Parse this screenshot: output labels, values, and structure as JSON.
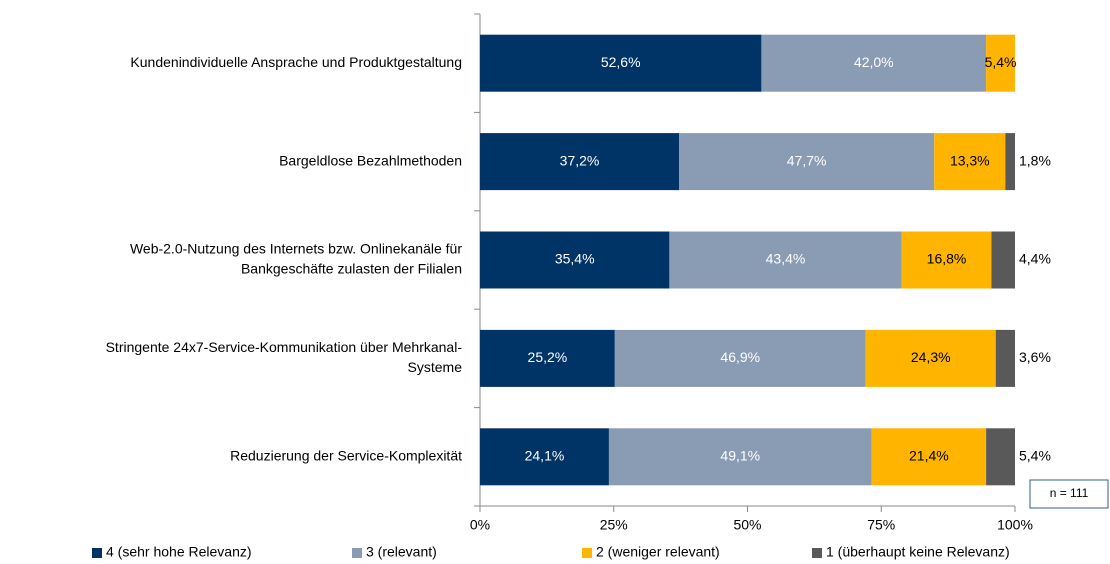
{
  "chart_data": {
    "type": "stacked-barh",
    "categories": [
      [
        "Kundenindividuelle Ansprache und Produktgestaltung"
      ],
      [
        "Bargeldlose Bezahlmethoden"
      ],
      [
        "Web-2.0-Nutzung des Internets bzw. Onlinekanäle für",
        "Bankgeschäfte zulasten der Filialen"
      ],
      [
        "Stringente 24x7-Service-Kommunikation über Mehrkanal-",
        "Systeme"
      ],
      [
        "Reduzierung der Service-Komplexität"
      ]
    ],
    "series": [
      {
        "name": "4 (sehr hohe Relevanz)",
        "color": "#003366",
        "label_color": "#ffffff",
        "values": [
          52.6,
          37.2,
          35.4,
          25.2,
          24.1
        ],
        "value_labels": [
          "52,6%",
          "37,2%",
          "35,4%",
          "25,2%",
          "24,1%"
        ]
      },
      {
        "name": "3 (relevant)",
        "color": "#8a9bb4",
        "label_color": "#ffffff",
        "values": [
          42.0,
          47.7,
          43.4,
          46.9,
          49.1
        ],
        "value_labels": [
          "42,0%",
          "47,7%",
          "43,4%",
          "46,9%",
          "49,1%"
        ]
      },
      {
        "name": "2 (weniger relevant)",
        "color": "#ffb400",
        "label_color": "#000000",
        "values": [
          5.4,
          13.3,
          16.8,
          24.3,
          21.4
        ],
        "value_labels": [
          "5,4%",
          "13,3%",
          "16,8%",
          "24,3%",
          "21,4%"
        ]
      },
      {
        "name": "1 (überhaupt keine Relevanz)",
        "color": "#595959",
        "label_color": "#000000",
        "label_outside": true,
        "values": [
          null,
          1.8,
          4.4,
          3.6,
          5.4
        ],
        "value_labels": [
          null,
          "1,8%",
          "4,4%",
          "3,6%",
          "5,4%"
        ]
      }
    ],
    "xlim": [
      0,
      100
    ],
    "xticks": [
      {
        "value": 0,
        "label": "0%"
      },
      {
        "value": 25,
        "label": "25%"
      },
      {
        "value": 50,
        "label": "50%"
      },
      {
        "value": 75,
        "label": "75%"
      },
      {
        "value": 100,
        "label": "100%"
      }
    ],
    "legend": "bottom",
    "annotation": "n = 111"
  }
}
